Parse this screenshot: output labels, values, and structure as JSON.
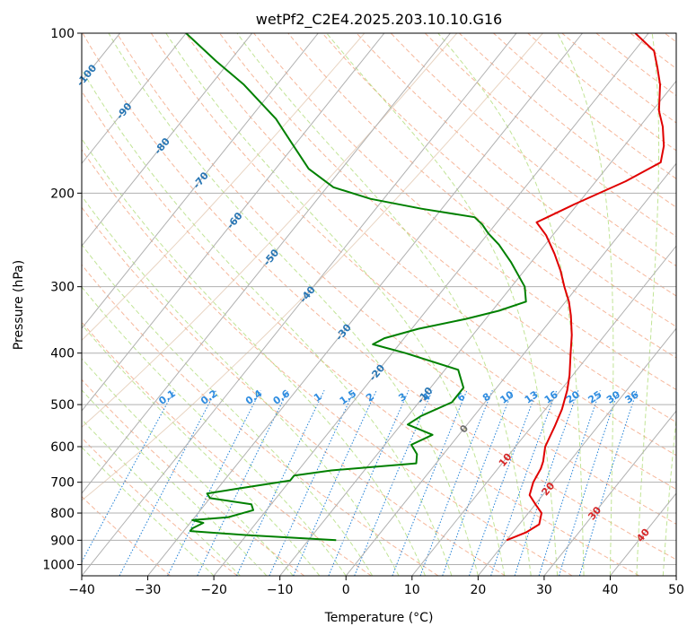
{
  "chart_data": {
    "type": "line",
    "subtype": "skew-T log-P diagram",
    "title": "wetPf2_C2E4.2025.203.10.10.G16",
    "xlabel": "Temperature (°C)",
    "ylabel": "Pressure (hPa)",
    "xlim": [
      -40,
      50
    ],
    "ylim": [
      1050,
      100
    ],
    "y_scale": "log",
    "x_ticks": [
      -40,
      -30,
      -20,
      -10,
      0,
      10,
      20,
      30,
      40,
      50
    ],
    "x_tick_labels": [
      "−40",
      "−30",
      "−20",
      "−10",
      "0",
      "10",
      "20",
      "30",
      "40",
      "50"
    ],
    "y_ticks": [
      100,
      200,
      300,
      400,
      500,
      600,
      700,
      800,
      900,
      1000
    ],
    "y_tick_labels": [
      "100",
      "200",
      "300",
      "400",
      "500",
      "600",
      "700",
      "800",
      "900",
      "1000"
    ],
    "grid": true,
    "isotherm_labels": [
      "-100",
      "-90",
      "-80",
      "-70",
      "-60",
      "-50",
      "-40",
      "-30",
      "-20",
      "-10",
      "0",
      "10",
      "20",
      "30",
      "40"
    ],
    "mixing_ratio_labels": [
      "0.1",
      "0.2",
      "0.4",
      "0.6",
      "1",
      "1.5",
      "2",
      "3",
      "4",
      "6",
      "8",
      "10",
      "13",
      "16",
      "20",
      "25",
      "30",
      "36"
    ],
    "series": [
      {
        "name": "Temperature",
        "color": "#e00000",
        "points": [
          [
            900,
            20.0
          ],
          [
            870,
            22.0
          ],
          [
            840,
            23.0
          ],
          [
            800,
            22.0
          ],
          [
            770,
            20.0
          ],
          [
            740,
            18.0
          ],
          [
            700,
            17.0
          ],
          [
            660,
            16.5
          ],
          [
            640,
            16.0
          ],
          [
            600,
            14.5
          ],
          [
            550,
            13.5
          ],
          [
            510,
            12.5
          ],
          [
            470,
            11.0
          ],
          [
            440,
            9.5
          ],
          [
            400,
            7.0
          ],
          [
            370,
            5.0
          ],
          [
            340,
            2.5
          ],
          [
            320,
            0.5
          ],
          [
            300,
            -2.0
          ],
          [
            280,
            -4.5
          ],
          [
            260,
            -7.5
          ],
          [
            240,
            -11.0
          ],
          [
            227,
            -14.0
          ],
          [
            222,
            -13.0
          ],
          [
            210,
            -10.5
          ],
          [
            190,
            -5.5
          ],
          [
            175,
            -2.5
          ],
          [
            163,
            -4.0
          ],
          [
            150,
            -6.5
          ],
          [
            140,
            -9.0
          ],
          [
            125,
            -12.0
          ],
          [
            116,
            -14.5
          ],
          [
            108,
            -17.0
          ],
          [
            100,
            -22.0
          ]
        ]
      },
      {
        "name": "Dewpoint",
        "color": "#008000",
        "points": [
          [
            900,
            -5.8
          ],
          [
            880,
            -20.0
          ],
          [
            865,
            -29.0
          ],
          [
            855,
            -29.0
          ],
          [
            835,
            -28.0
          ],
          [
            825,
            -30.0
          ],
          [
            815,
            -25.0
          ],
          [
            790,
            -22.0
          ],
          [
            770,
            -23.0
          ],
          [
            750,
            -30.0
          ],
          [
            735,
            -31.0
          ],
          [
            720,
            -27.0
          ],
          [
            695,
            -20.0
          ],
          [
            680,
            -20.0
          ],
          [
            665,
            -15.0
          ],
          [
            645,
            -3.0
          ],
          [
            620,
            -4.0
          ],
          [
            595,
            -6.0
          ],
          [
            570,
            -4.0
          ],
          [
            545,
            -9.0
          ],
          [
            525,
            -8.0
          ],
          [
            495,
            -5.0
          ],
          [
            465,
            -5.0
          ],
          [
            430,
            -8.0
          ],
          [
            400,
            -18.0
          ],
          [
            385,
            -24.0
          ],
          [
            375,
            -23.0
          ],
          [
            360,
            -19.0
          ],
          [
            345,
            -13.0
          ],
          [
            333,
            -9.0
          ],
          [
            320,
            -6.0
          ],
          [
            300,
            -8.0
          ],
          [
            270,
            -13.0
          ],
          [
            250,
            -17.0
          ],
          [
            238,
            -20.0
          ],
          [
            229,
            -22.0
          ],
          [
            222,
            -24.0
          ],
          [
            214,
            -33.0
          ],
          [
            205,
            -42.0
          ],
          [
            195,
            -49.0
          ],
          [
            180,
            -55.0
          ],
          [
            160,
            -61.0
          ],
          [
            145,
            -66.0
          ],
          [
            125,
            -75.0
          ],
          [
            113,
            -82.0
          ],
          [
            100,
            -90.0
          ]
        ]
      }
    ]
  }
}
